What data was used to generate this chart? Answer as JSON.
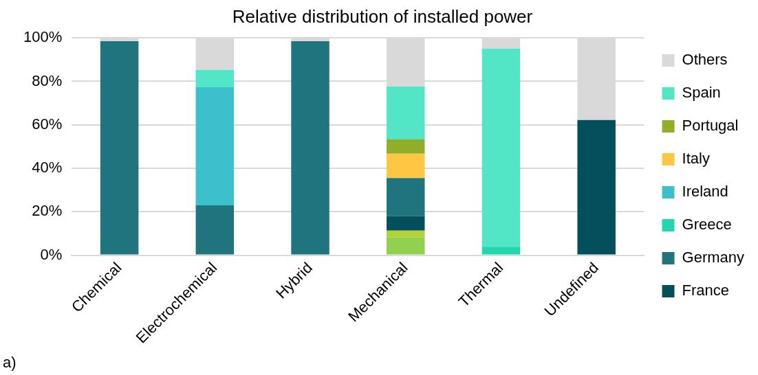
{
  "chart_data": {
    "type": "bar",
    "title": "Relative distribution of installed power",
    "stacked": true,
    "categories": [
      "Chemical",
      "Electrochemical",
      "Hybrid",
      "Mechanical",
      "Thermal",
      "Undefined"
    ],
    "series": [
      {
        "color": "#92d050",
        "values": [
          0,
          0,
          0,
          8.2,
          0,
          0
        ]
      },
      {
        "color": "#b2d235",
        "values": [
          0,
          0,
          0,
          3.1,
          0,
          0
        ]
      },
      {
        "name": "France",
        "color": "#03505c",
        "values": [
          0,
          0,
          0,
          6.7,
          0,
          62.2
        ]
      },
      {
        "name": "Germany",
        "color": "#20747d",
        "values": [
          98.5,
          22.9,
          98.5,
          17.5,
          0,
          0
        ]
      },
      {
        "name": "Greece",
        "color": "#22d6ad",
        "values": [
          0,
          0,
          0,
          0,
          3.9,
          0
        ]
      },
      {
        "name": "Ireland",
        "color": "#3bc0cc",
        "values": [
          0,
          54.4,
          0,
          0,
          0,
          0
        ]
      },
      {
        "name": "Italy",
        "color": "#fdc743",
        "values": [
          0,
          0,
          0,
          11.2,
          0,
          0
        ]
      },
      {
        "name": "Portugal",
        "color": "#92ad29",
        "values": [
          0,
          0,
          0,
          6.6,
          0,
          0
        ]
      },
      {
        "name": "Spain",
        "color": "#53e6c6",
        "values": [
          0,
          8.0,
          0,
          24.3,
          91.2,
          0
        ]
      },
      {
        "name": "Others",
        "color": "#d9d9d9",
        "values": [
          1.5,
          14.7,
          1.5,
          22.4,
          4.9,
          37.8
        ]
      }
    ],
    "ylim": [
      0,
      100
    ],
    "yticks": [
      {
        "value": 0,
        "label": "0%"
      },
      {
        "value": 20,
        "label": "20%"
      },
      {
        "value": 40,
        "label": "40%"
      },
      {
        "value": 60,
        "label": "60%"
      },
      {
        "value": 80,
        "label": "80%"
      },
      {
        "value": 100,
        "label": "100%"
      }
    ],
    "grid": "y",
    "legend": "right",
    "annotations": [
      "a)"
    ]
  }
}
